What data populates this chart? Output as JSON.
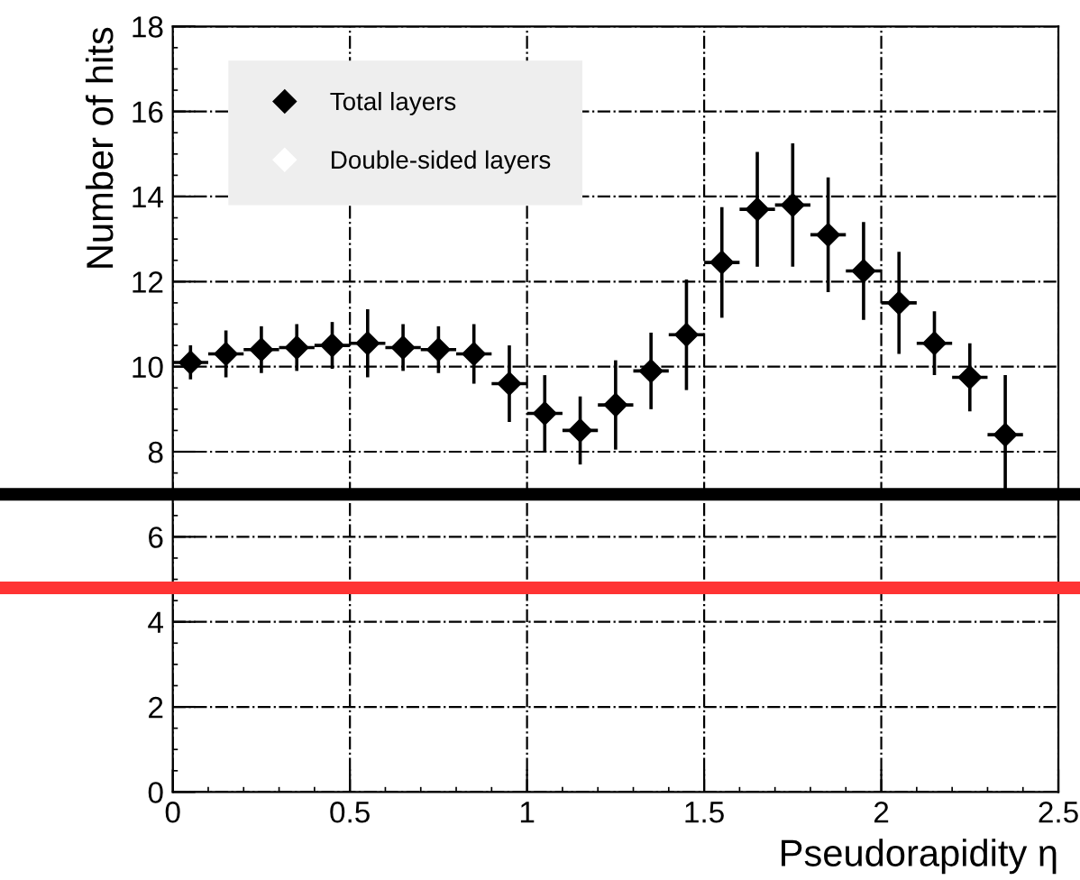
{
  "chart_data": {
    "type": "scatter",
    "xlabel": "Pseudorapidity η",
    "ylabel": "Number of hits",
    "x": [
      0.05,
      0.15,
      0.25,
      0.35,
      0.45,
      0.55,
      0.65,
      0.75,
      0.85,
      0.95,
      1.05,
      1.15,
      1.25,
      1.35,
      1.45,
      1.55,
      1.65,
      1.75,
      1.85,
      1.95,
      2.05,
      2.15,
      2.25,
      2.35
    ],
    "series": [
      {
        "name": "Total layers",
        "color": "#000000",
        "values": [
          10.1,
          10.3,
          10.4,
          10.45,
          10.5,
          10.55,
          10.45,
          10.4,
          10.3,
          9.6,
          8.9,
          8.5,
          9.1,
          9.9,
          10.75,
          12.45,
          13.7,
          13.8,
          13.1,
          12.25,
          11.5,
          10.55,
          9.75,
          8.4
        ],
        "xerrors": [
          0.05,
          0.05,
          0.05,
          0.05,
          0.05,
          0.05,
          0.05,
          0.05,
          0.05,
          0.05,
          0.05,
          0.05,
          0.05,
          0.05,
          0.05,
          0.05,
          0.05,
          0.05,
          0.05,
          0.05,
          0.05,
          0.05,
          0.05,
          0.05
        ],
        "errors": [
          0.4,
          0.55,
          0.55,
          0.55,
          0.55,
          0.8,
          0.55,
          0.55,
          0.7,
          0.9,
          0.9,
          0.8,
          1.05,
          0.9,
          1.3,
          1.3,
          1.35,
          1.45,
          1.35,
          1.15,
          1.2,
          0.75,
          0.8,
          1.4
        ]
      },
      {
        "name": "Double-sided layers",
        "color": "#ffffff",
        "values": [
          null,
          null,
          null,
          null,
          null,
          null,
          null,
          null,
          null,
          null,
          null,
          null,
          null,
          null,
          null,
          null,
          null,
          null,
          null,
          null,
          null,
          null,
          null,
          null
        ]
      }
    ],
    "xlim": [
      0,
      2.5
    ],
    "ylim": [
      0,
      18
    ],
    "xticks": [
      0,
      0.5,
      1,
      1.5,
      2,
      2.5
    ],
    "yticks": [
      0,
      2,
      4,
      6,
      8,
      10,
      12,
      14,
      16,
      18
    ],
    "grid": true,
    "legend": "top left",
    "marker": "diamond",
    "ref_lines": [
      {
        "axis": "y",
        "value": 7.0,
        "color": "#000000"
      },
      {
        "axis": "y",
        "value": 4.8,
        "color": "#ff3333"
      }
    ]
  }
}
